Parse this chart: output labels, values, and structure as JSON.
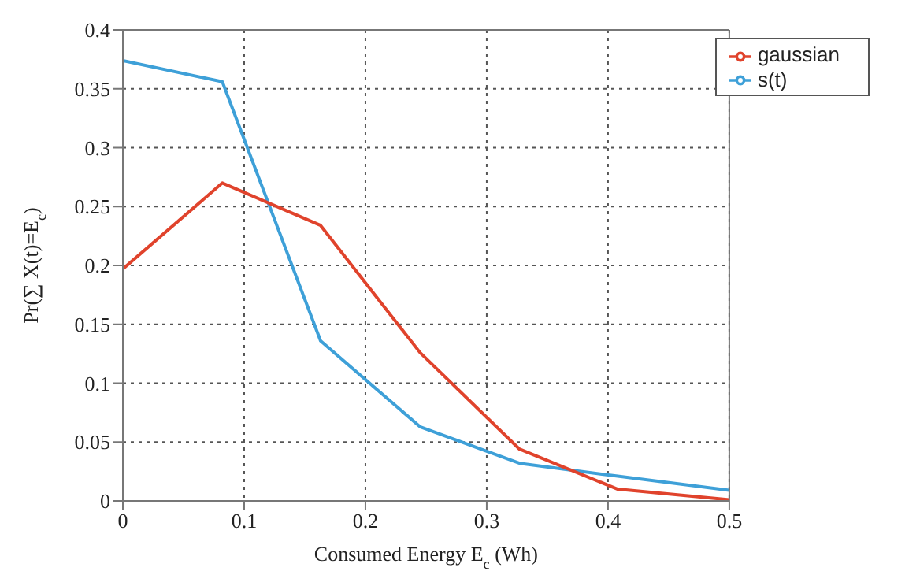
{
  "chart_data": {
    "type": "line",
    "xlabel": "Consumed Energy E$_{c}$ (Wh)",
    "ylabel": "Pr(∑ X(t)=E$_{c}$)",
    "x": [
      0,
      0.082,
      0.163,
      0.245,
      0.327,
      0.408,
      0.5
    ],
    "series": [
      {
        "name": "s(t)",
        "color": "#3ea0d8",
        "values": [
          0.374,
          0.356,
          0.136,
          0.063,
          0.032,
          0.021,
          0.009
        ]
      },
      {
        "name": "gaussian",
        "color": "#e0432c",
        "values": [
          0.197,
          0.27,
          0.234,
          0.126,
          0.044,
          0.01,
          0.001
        ]
      }
    ],
    "xlim": [
      0,
      0.5
    ],
    "xticks": [
      0,
      0.1,
      0.2,
      0.3,
      0.4,
      0.5
    ],
    "ylim": [
      0,
      0.4
    ],
    "yticks": [
      0,
      0.05,
      0.1,
      0.15,
      0.2,
      0.25,
      0.3,
      0.35,
      0.4
    ],
    "grid": true,
    "legend": "top right",
    "marker": "none",
    "line_style": "solid"
  }
}
